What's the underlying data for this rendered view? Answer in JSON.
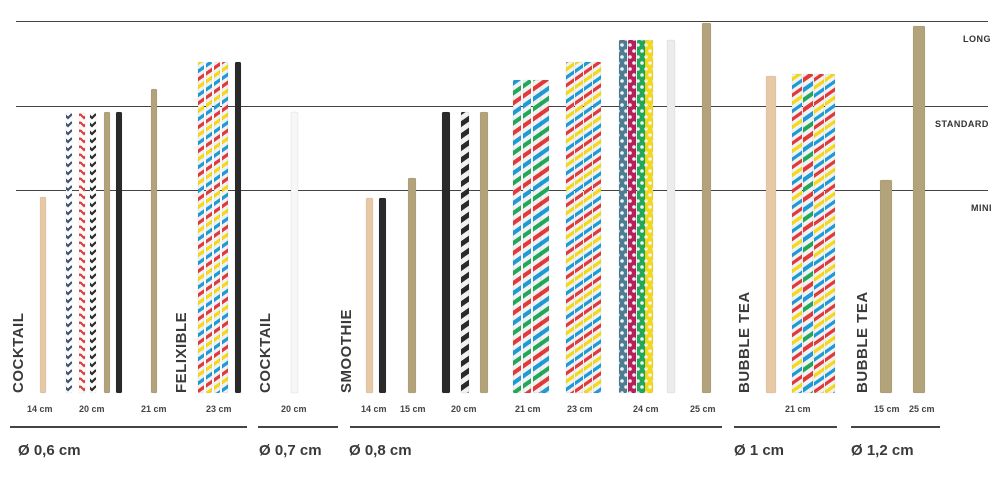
{
  "levels": {
    "long": "LONG",
    "standard": "STANDARD",
    "mini": "MINI"
  },
  "groups": [
    {
      "diameter": "Ø 0,6 cm",
      "categories": [
        "COCKTAIL",
        "FELIXIBLE"
      ],
      "lengths": [
        "14 cm",
        "20 cm",
        "21 cm",
        "23 cm"
      ]
    },
    {
      "diameter": "Ø 0,7 cm",
      "categories": [
        "COCKTAIL"
      ],
      "lengths": [
        "20 cm"
      ]
    },
    {
      "diameter": "Ø 0,8 cm",
      "categories": [
        "SMOOTHIE"
      ],
      "lengths": [
        "14 cm",
        "15 cm",
        "20 cm",
        "21 cm",
        "23 cm",
        "24 cm",
        "25 cm"
      ]
    },
    {
      "diameter": "Ø 1 cm",
      "categories": [
        "BUBBLE TEA"
      ],
      "lengths": [
        "21 cm"
      ]
    },
    {
      "diameter": "Ø 1,2 cm",
      "categories": [
        "BUBBLE TEA"
      ],
      "lengths": [
        "15 cm",
        "25 cm"
      ]
    }
  ],
  "colors": {
    "kraft": "#b3a37a",
    "natural": "#e8c9a6",
    "black": "#2a2a2a",
    "white": "#f2f2f2",
    "red": "#e23a3a",
    "blue": "#1e9bd7",
    "green": "#22a859",
    "yellow": "#f3d91a",
    "navy": "#3e5270",
    "teal": "#4d7d93",
    "magenta": "#b5205a"
  }
}
